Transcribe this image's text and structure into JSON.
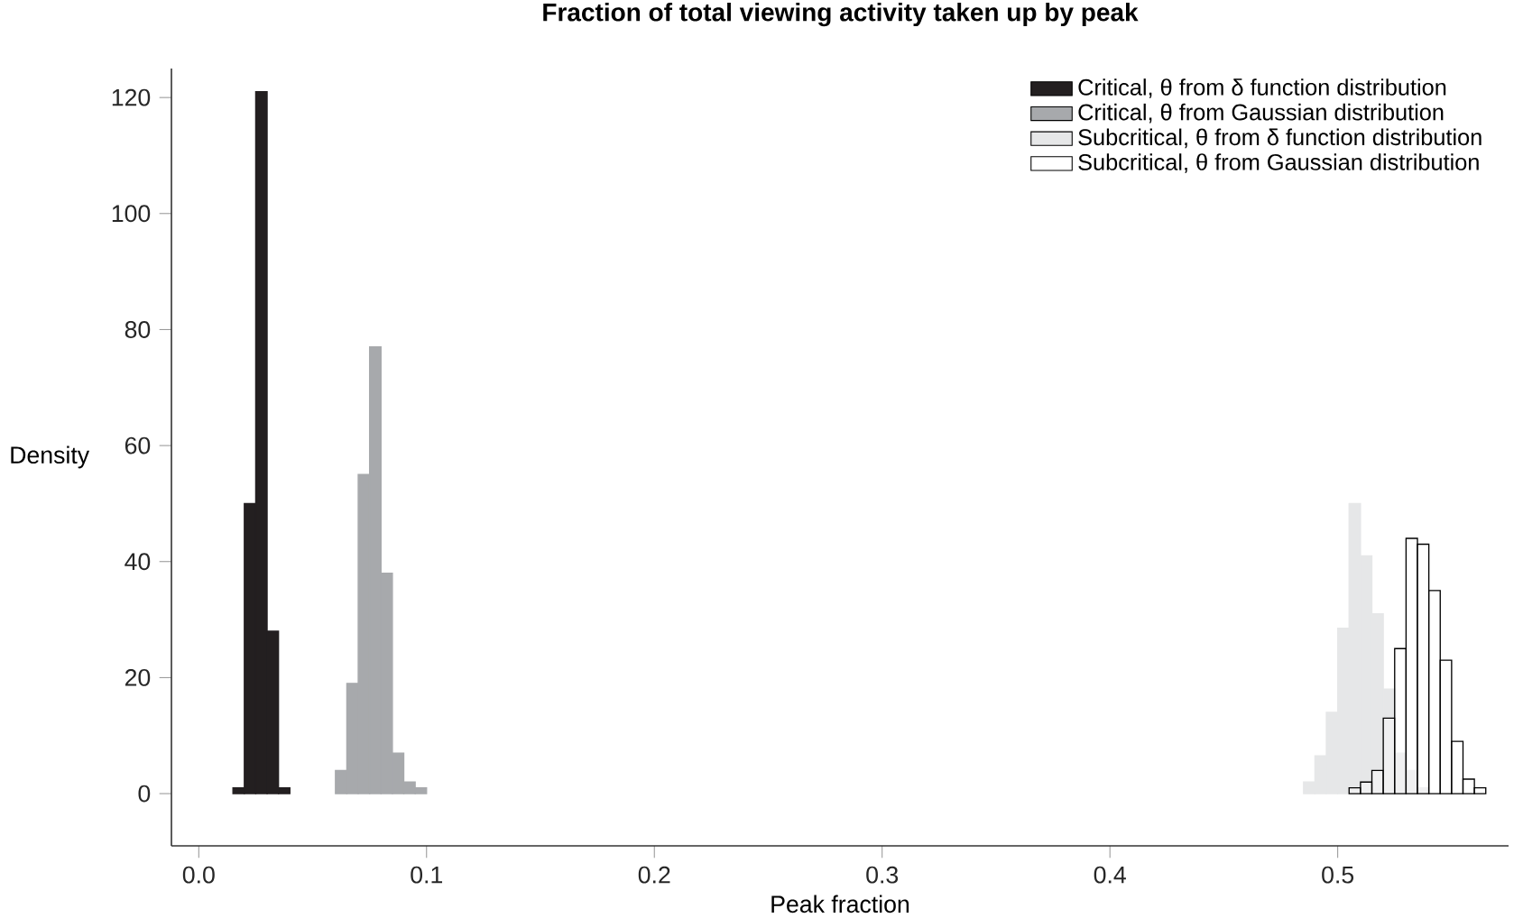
{
  "chart_data": {
    "type": "histogram",
    "title": "Fraction of total viewing activity taken up by peak",
    "xlabel": "Peak fraction",
    "ylabel": "Density",
    "xlim": [
      -0.012,
      0.575
    ],
    "ylim": [
      -9,
      125
    ],
    "xticks": [
      {
        "value": 0,
        "label": "0.0"
      },
      0.1,
      0.2,
      0.3,
      0.4,
      0.5
    ],
    "yticks": [
      0,
      20,
      40,
      60,
      80,
      100,
      120
    ],
    "legend": "top right",
    "grid": false,
    "bins": [
      0.015,
      0.02,
      0.025,
      0.03,
      0.035,
      0.04,
      0.06,
      0.065,
      0.07,
      0.075,
      0.08,
      0.085,
      0.09,
      0.095,
      0.1,
      0.485,
      0.49,
      0.495,
      0.5,
      0.505,
      0.51,
      0.515,
      0.52,
      0.525,
      0.53,
      0.535,
      0.54,
      0.545,
      0.55,
      0.555,
      0.56,
      0.565
    ],
    "series": [
      {
        "name": "Critical, θ from δ function distribution",
        "color": "#231f20",
        "values": [
          1,
          50,
          121,
          28,
          1,
          null,
          null,
          null,
          null,
          null,
          null,
          null,
          null,
          null,
          null,
          null,
          null,
          null,
          null,
          null,
          null,
          null,
          null,
          null,
          null,
          null,
          null,
          null,
          null,
          null,
          null
        ]
      },
      {
        "name": "Critical, θ from Gaussian distribution",
        "color": "#a7a9ac",
        "values": [
          null,
          null,
          null,
          null,
          null,
          null,
          4,
          19,
          55,
          77,
          38,
          7,
          2,
          1,
          null,
          null,
          null,
          null,
          null,
          null,
          null,
          null,
          null,
          null,
          null,
          null,
          null,
          null,
          null,
          null,
          null
        ]
      },
      {
        "name": "Subcritical, θ from δ function distribution",
        "color": "#e6e7e8",
        "values": [
          null,
          null,
          null,
          null,
          null,
          null,
          null,
          null,
          null,
          null,
          null,
          null,
          null,
          null,
          null,
          2,
          6.5,
          14,
          28.5,
          50,
          41,
          31,
          18,
          7,
          4,
          1,
          null,
          null,
          null,
          null,
          null
        ]
      },
      {
        "name": "Subcritical, θ from Gaussian distribution",
        "color": "#ffffff",
        "values": [
          null,
          null,
          null,
          null,
          null,
          null,
          null,
          null,
          null,
          null,
          null,
          null,
          null,
          null,
          null,
          null,
          null,
          null,
          null,
          1,
          2,
          4,
          13,
          25,
          44,
          43,
          35,
          23,
          9,
          2.5,
          1
        ]
      }
    ]
  }
}
